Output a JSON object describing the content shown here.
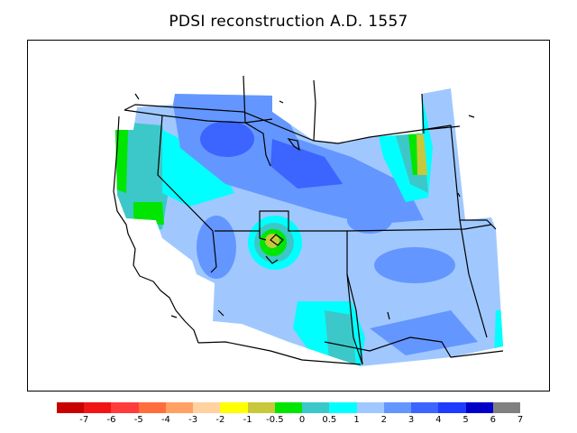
{
  "title": "PDSI reconstruction A.D. 1557",
  "legend": {
    "colors": [
      "#c80000",
      "#f01414",
      "#ff3c3c",
      "#ff6e3c",
      "#ffa064",
      "#ffd2a0",
      "#ffff00",
      "#c8c83c",
      "#00e600",
      "#3cc8c8",
      "#00ffff",
      "#a0c8ff",
      "#6496ff",
      "#3c64ff",
      "#1e3cff",
      "#0000c8",
      "#808080"
    ],
    "ticks": [
      "-7",
      "-6",
      "-5",
      "-4",
      "-3",
      "-2",
      "-1",
      "-0.5",
      "0",
      "0.5",
      "1",
      "2",
      "3",
      "4",
      "5",
      "6",
      "7"
    ]
  },
  "colors": {
    "cyan": "#00ffff",
    "light_blue": "#a0c8ff",
    "blue": "#6496ff",
    "dark_blue": "#3c64ff",
    "teal": "#3cc8c8",
    "green": "#00e600",
    "olive": "#c8c83c"
  }
}
